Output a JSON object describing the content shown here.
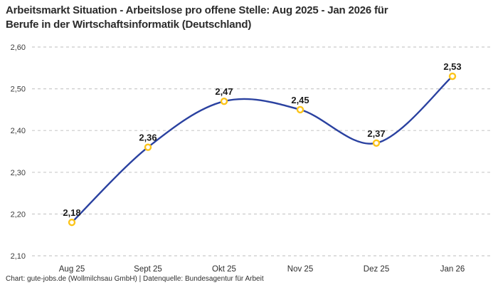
{
  "header": {
    "title_lines": [
      "Arbeitsmarkt Situation - Arbeitslose pro offene Stelle: Aug 2025 - Jan 2026 für",
      "Berufe in der Wirtschaftsinformatik (Deutschland)"
    ]
  },
  "chart_data": {
    "type": "line",
    "title": "Arbeitsmarkt Situation - Arbeitslose pro offene Stelle: Aug 2025 - Jan 2026 für Berufe in der Wirtschaftsinformatik (Deutschland)",
    "categories": [
      "Aug 25",
      "Sept 25",
      "Okt 25",
      "Nov 25",
      "Dez 25",
      "Jan 26"
    ],
    "values": [
      2.18,
      2.36,
      2.47,
      2.45,
      2.37,
      2.53
    ],
    "value_labels": [
      "2,18",
      "2,36",
      "2,47",
      "2,45",
      "2,37",
      "2,53"
    ],
    "y_ticks": [
      2.1,
      2.2,
      2.3,
      2.4,
      2.5,
      2.6
    ],
    "y_tick_labels": [
      "2,10",
      "2,20",
      "2,30",
      "2,40",
      "2,50",
      "2,60"
    ],
    "ylim": [
      2.1,
      2.6
    ],
    "xlabel": "",
    "ylabel": "",
    "legend": "none",
    "grid": "horizontal-dashed",
    "line_style": "smooth",
    "colors": {
      "line": "#2A41A0",
      "marker_ring": "#FCC419",
      "marker_fill": "#FFFFFF",
      "grid": "#CBCBCB",
      "tick_text": "#3c3c3c",
      "value_text": "#1c1c1c"
    }
  },
  "footer": {
    "credit": "Chart: gute-jobs.de (Wollmilchsau GmbH) | Datenquelle: Bundesagentur für Arbeit"
  }
}
